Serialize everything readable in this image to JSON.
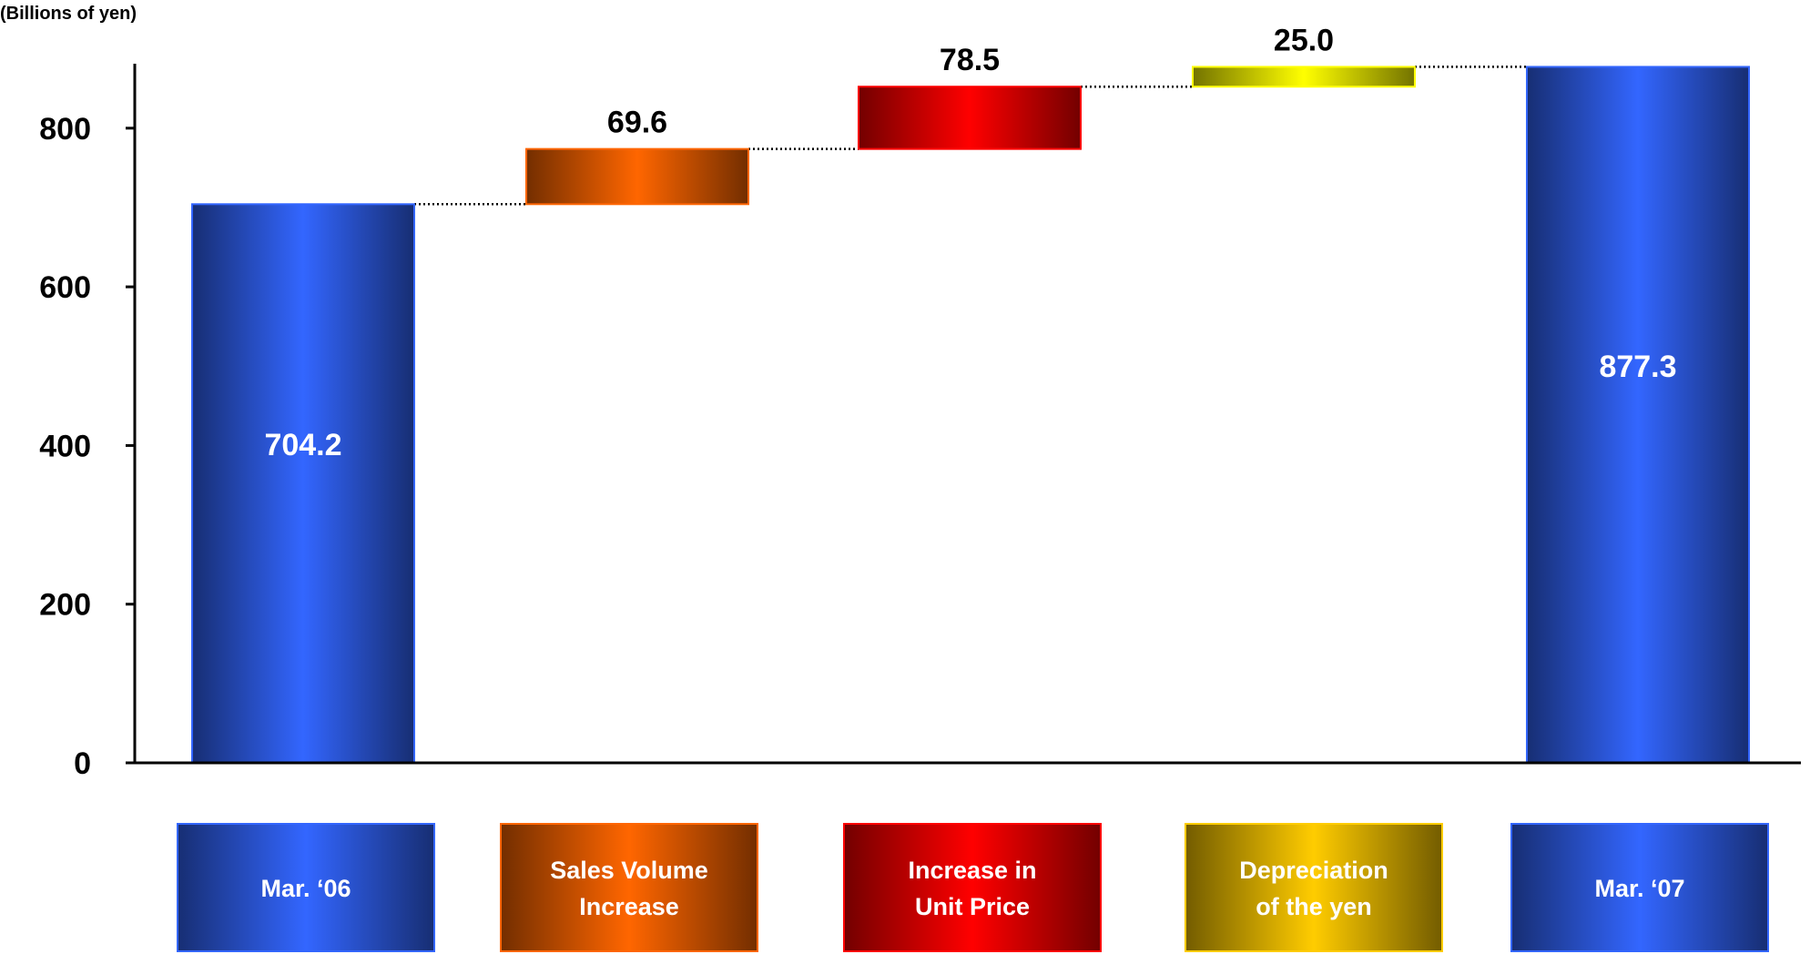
{
  "chart_data": {
    "type": "bar",
    "subtype": "waterfall",
    "unit_label": "(Billions of yen)",
    "categories": [
      "Mar. ‘06",
      "Sales Volume Increase",
      "Increase in Unit Price",
      "Depreciation of the yen",
      "Mar. ‘07"
    ],
    "category_lines": [
      [
        "Mar. ‘06"
      ],
      [
        "Sales Volume",
        "Increase"
      ],
      [
        "Increase in",
        "Unit Price"
      ],
      [
        "Depreciation",
        "of the yen"
      ],
      [
        "Mar. ‘07"
      ]
    ],
    "bars": [
      {
        "category": "Mar. ‘06",
        "kind": "total",
        "start": 0,
        "end": 704.2,
        "value": 704.2,
        "label": "704.2",
        "color": "#3366ff"
      },
      {
        "category": "Sales Volume Increase",
        "kind": "increase",
        "start": 704.2,
        "end": 773.8,
        "value": 69.6,
        "label": "69.6",
        "color": "#ff6600"
      },
      {
        "category": "Increase in Unit Price",
        "kind": "increase",
        "start": 773.8,
        "end": 852.3,
        "value": 78.5,
        "label": "78.5",
        "color": "#ff0000"
      },
      {
        "category": "Depreciation of the yen",
        "kind": "increase",
        "start": 852.3,
        "end": 877.3,
        "value": 25.0,
        "label": "25.0",
        "color": "#ffff00"
      },
      {
        "category": "Mar. ‘07",
        "kind": "total",
        "start": 0,
        "end": 877.3,
        "value": 877.3,
        "label": "877.3",
        "color": "#3366ff"
      }
    ],
    "yticks": [
      0,
      200,
      400,
      600,
      800
    ],
    "ytick_labels": [
      "0",
      "200",
      "400",
      "600",
      "800"
    ],
    "ylim": [
      0,
      880
    ],
    "grid": false,
    "legend": "boxes-below",
    "legend_colors": [
      "#3366ff",
      "#ff6600",
      "#ff0000",
      "#ffcc00",
      "#3366ff"
    ]
  }
}
